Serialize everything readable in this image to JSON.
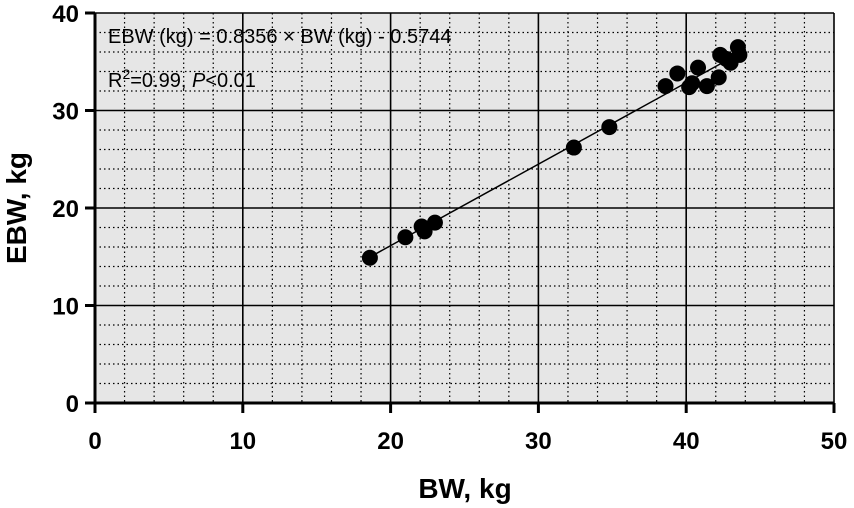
{
  "chart_data": {
    "type": "scatter",
    "xlabel": "BW, kg",
    "ylabel": "EBW, kg",
    "xlim": [
      0,
      50
    ],
    "ylim": [
      0,
      40
    ],
    "x_major_ticks": [
      0,
      10,
      20,
      30,
      40,
      50
    ],
    "y_major_ticks": [
      0,
      10,
      20,
      30,
      40
    ],
    "x_minor_step": 2,
    "y_minor_step": 2,
    "x_tick_labels": [
      "0",
      "10",
      "20",
      "30",
      "40",
      "50"
    ],
    "y_tick_labels": [
      "0",
      "10",
      "20",
      "30",
      "40"
    ],
    "grid": true,
    "background_color": "#e6e6e6",
    "marker_color": "#000000",
    "annotations": {
      "equation": "EBW (kg) = 0.8356 × BW (kg) - 0.5744",
      "r2_prefix": "R",
      "r2_sup": "2",
      "r2_value": "=0.99, ",
      "p_label": "P",
      "p_value": "<0.01"
    },
    "fit_line": {
      "slope": 0.8356,
      "intercept": -0.5744,
      "x_range": [
        18.5,
        43.6
      ]
    },
    "points": [
      {
        "x": 18.6,
        "y": 14.9
      },
      {
        "x": 21.0,
        "y": 17.0
      },
      {
        "x": 22.1,
        "y": 18.1
      },
      {
        "x": 22.3,
        "y": 17.6
      },
      {
        "x": 23.0,
        "y": 18.5
      },
      {
        "x": 32.4,
        "y": 26.2
      },
      {
        "x": 34.8,
        "y": 28.3
      },
      {
        "x": 38.6,
        "y": 32.5
      },
      {
        "x": 39.4,
        "y": 33.8
      },
      {
        "x": 40.2,
        "y": 32.4
      },
      {
        "x": 40.4,
        "y": 32.8
      },
      {
        "x": 40.8,
        "y": 34.4
      },
      {
        "x": 41.4,
        "y": 32.5
      },
      {
        "x": 42.2,
        "y": 33.4
      },
      {
        "x": 42.3,
        "y": 35.7
      },
      {
        "x": 42.7,
        "y": 35.3
      },
      {
        "x": 43.0,
        "y": 34.9
      },
      {
        "x": 43.5,
        "y": 36.5
      },
      {
        "x": 43.6,
        "y": 35.7
      }
    ]
  }
}
